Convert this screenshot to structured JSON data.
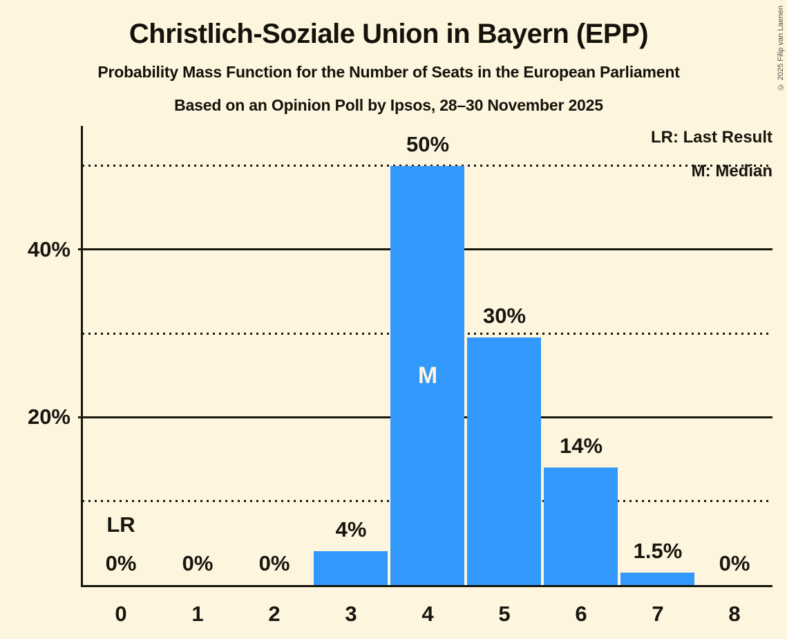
{
  "header": {
    "title": "Christlich-Soziale Union in Bayern (EPP)",
    "subtitle1": "Probability Mass Function for the Number of Seats in the European Parliament",
    "subtitle2": "Based on an Opinion Poll by Ipsos, 28–30 November 2025",
    "copyright": "© 2025 Filip van Laenen"
  },
  "legend": {
    "lr": "LR: Last Result",
    "m": "M: Median"
  },
  "colors": {
    "background": "#FDF5DD",
    "bar": "#3398FB",
    "text": "#17150E",
    "median_text": "#FDF5DD"
  },
  "chart_data": {
    "type": "bar",
    "title": "Christlich-Soziale Union in Bayern (EPP)",
    "subtitle": "Probability Mass Function for the Number of Seats in the European Parliament",
    "source_note": "Based on an Opinion Poll by Ipsos, 28–30 November 2025",
    "categories": [
      "0",
      "1",
      "2",
      "3",
      "4",
      "5",
      "6",
      "7",
      "8"
    ],
    "values": [
      0,
      0,
      0,
      4,
      50,
      29.5,
      14,
      1.5,
      0
    ],
    "value_labels": [
      "0%",
      "0%",
      "0%",
      "4%",
      "50%",
      "30%",
      "14%",
      "1.5%",
      "0%"
    ],
    "ylim": [
      0,
      54.8
    ],
    "yticks": [
      {
        "pct": 20,
        "label": "20%"
      },
      {
        "pct": 40,
        "label": "40%"
      }
    ],
    "gridlines_solid_pct": [
      20,
      40
    ],
    "gridlines_dotted_pct": [
      10,
      30,
      50
    ],
    "legend_entries": [
      "LR: Last Result",
      "M: Median"
    ],
    "annotations": {
      "lr_label": "LR",
      "lr_seat": 0,
      "median_label": "M",
      "median_seat": 4
    }
  }
}
